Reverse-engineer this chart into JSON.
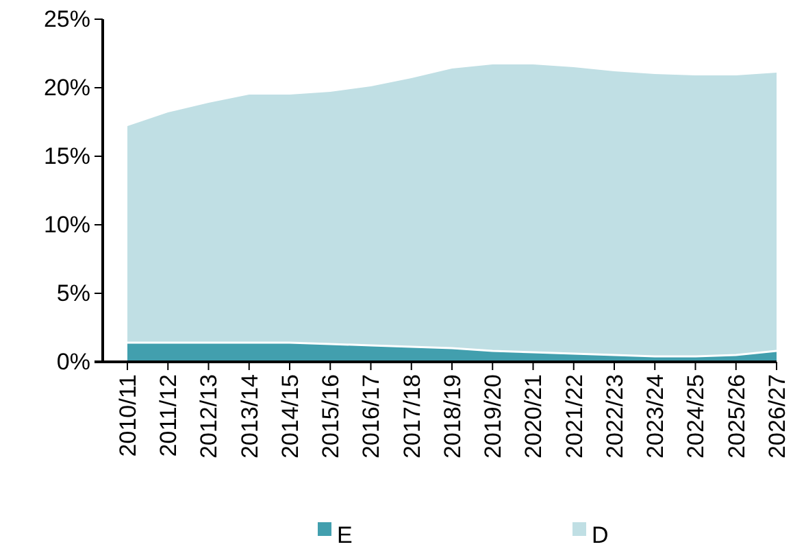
{
  "chart_data": {
    "type": "area",
    "stacked": true,
    "categories": [
      "2010/11",
      "2011/12",
      "2012/13",
      "2013/14",
      "2014/15",
      "2015/16",
      "2016/17",
      "2017/18",
      "2018/19",
      "2019/20",
      "2020/21",
      "2021/22",
      "2022/23",
      "2023/24",
      "2024/25",
      "2025/26",
      "2026/27"
    ],
    "series": [
      {
        "name": "E",
        "color": "#429fae",
        "values": [
          1.4,
          1.4,
          1.4,
          1.4,
          1.4,
          1.3,
          1.2,
          1.1,
          1.0,
          0.8,
          0.7,
          0.6,
          0.5,
          0.4,
          0.4,
          0.5,
          0.8
        ]
      },
      {
        "name": "D",
        "color": "#c0dfe4",
        "values": [
          15.8,
          16.8,
          17.5,
          18.1,
          18.1,
          18.4,
          18.9,
          19.6,
          20.4,
          20.9,
          21.0,
          20.9,
          20.7,
          20.6,
          20.5,
          20.4,
          20.3
        ]
      }
    ],
    "ylim": [
      0,
      25
    ],
    "yticks": [
      {
        "value": 0,
        "label": "0%"
      },
      {
        "value": 5,
        "label": "5%"
      },
      {
        "value": 10,
        "label": "10%"
      },
      {
        "value": 15,
        "label": "15%"
      },
      {
        "value": 20,
        "label": "20%"
      },
      {
        "value": 25,
        "label": "25%"
      }
    ],
    "grid": false,
    "legend": "bottom"
  }
}
